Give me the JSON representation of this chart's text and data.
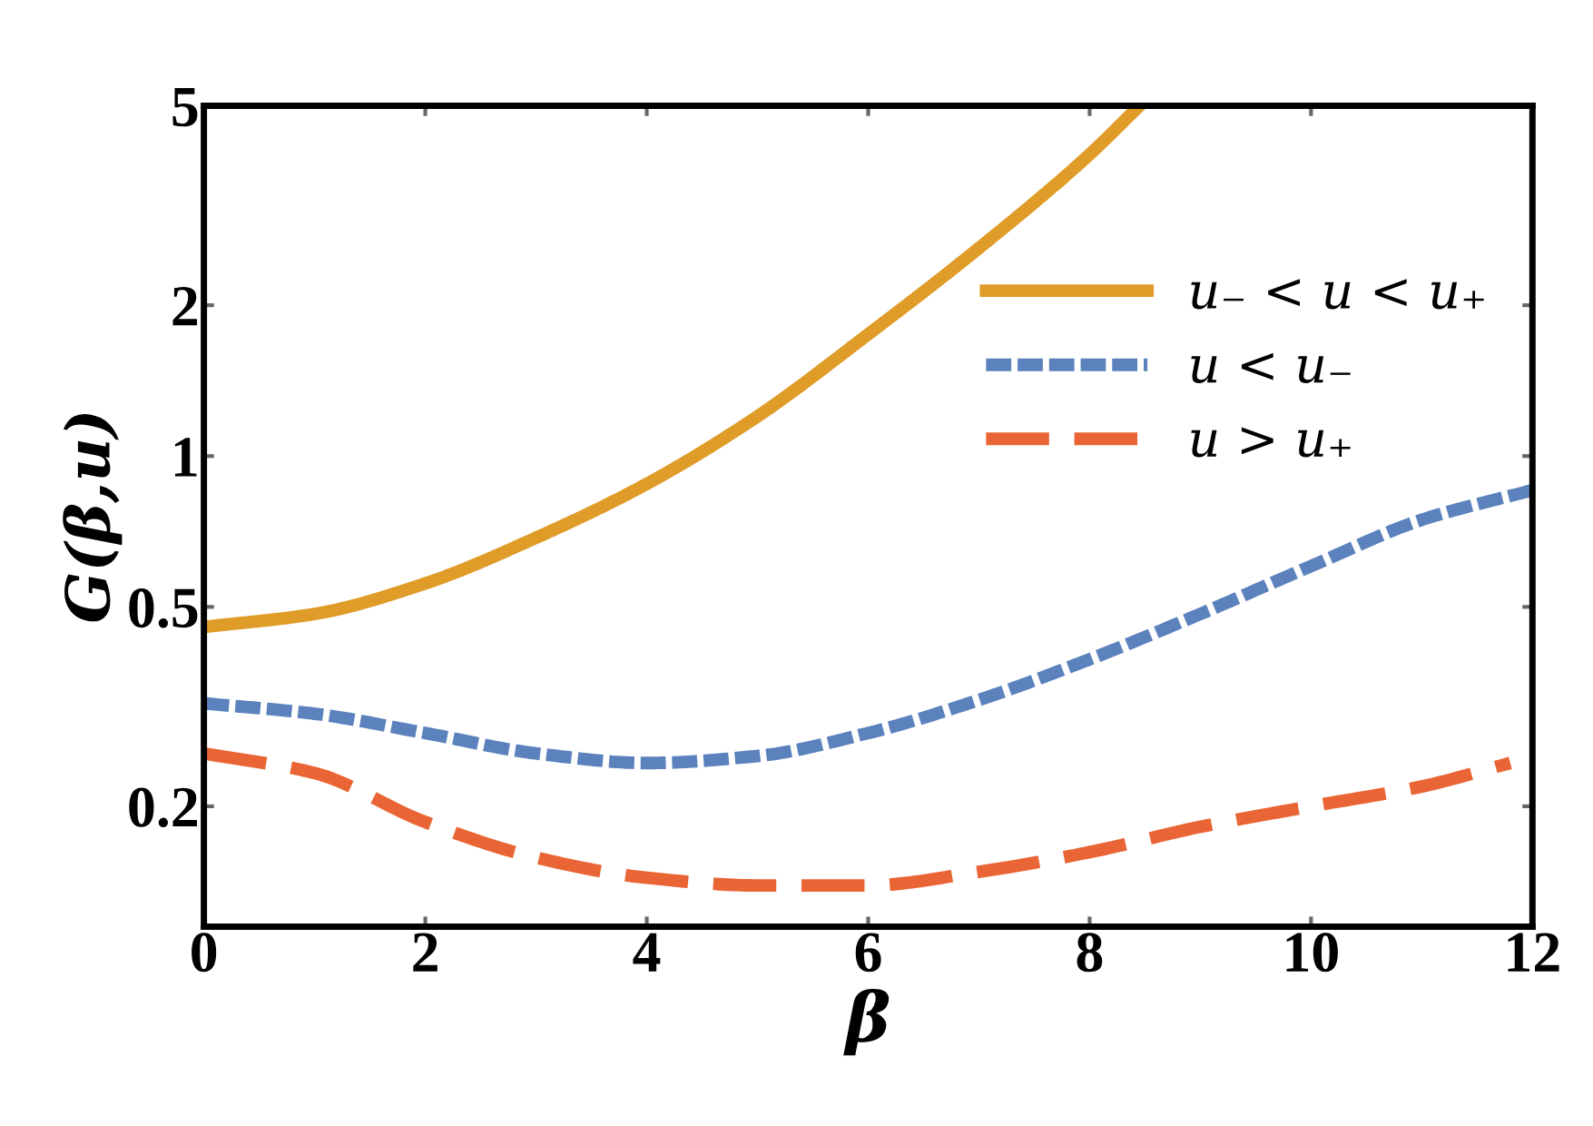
{
  "chart_data": {
    "type": "line",
    "xlabel": "β",
    "ylabel": "G(β,u)",
    "log": "y",
    "xlim": [
      0,
      12
    ],
    "xticks": [
      0,
      2,
      4,
      6,
      8,
      10,
      12
    ],
    "ylim": [
      0.115,
      5
    ],
    "yticks": [
      0.2,
      0.5,
      1,
      2,
      5
    ],
    "grid": false,
    "legend": "right",
    "marker": "none",
    "series": [
      {
        "name": "u₋ < u < u₊",
        "color": "#e09c28",
        "line_style": "solid",
        "x": [
          0,
          1,
          2,
          3,
          4,
          5,
          6,
          7,
          8,
          8.45
        ],
        "values": [
          0.456,
          0.484,
          0.557,
          0.687,
          0.88,
          1.2,
          1.75,
          2.6,
          4.0,
          5
        ]
      },
      {
        "name": "u < u₋",
        "color": "#5b82bd",
        "line_style": "dotted",
        "x": [
          0,
          1,
          2,
          3,
          4,
          5,
          6,
          7,
          8,
          9,
          10,
          11,
          12
        ],
        "values": [
          0.321,
          0.306,
          0.28,
          0.255,
          0.244,
          0.252,
          0.28,
          0.326,
          0.393,
          0.484,
          0.603,
          0.746,
          0.855
        ]
      },
      {
        "name": "u > u₊",
        "color": "#ea6535",
        "line_style": "dashed",
        "x": [
          0,
          1,
          2,
          3,
          4,
          5,
          6,
          7,
          8,
          9,
          10,
          11,
          11.8
        ],
        "values": [
          0.255,
          0.233,
          0.186,
          0.158,
          0.144,
          0.139,
          0.139,
          0.148,
          0.162,
          0.182,
          0.2,
          0.219,
          0.244
        ]
      }
    ]
  }
}
